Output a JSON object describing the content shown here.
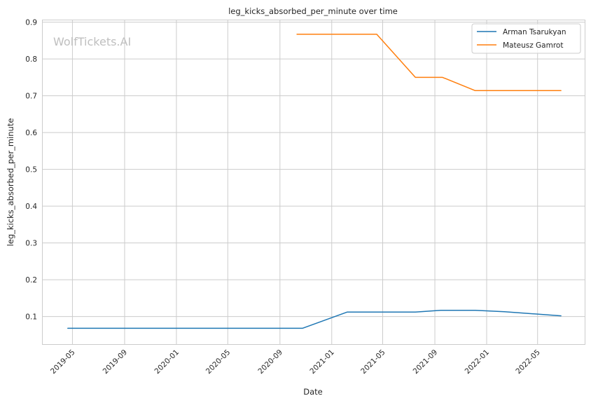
{
  "chart_data": {
    "type": "line",
    "title": "leg_kicks_absorbed_per_minute over time",
    "xlabel": "Date",
    "ylabel": "leg_kicks_absorbed_per_minute",
    "watermark": "WolfTickets.AI",
    "grid": true,
    "legend_position": "top-right",
    "xlim": [
      "2019-02-20",
      "2022-08-20"
    ],
    "ylim": [
      0.025,
      0.905
    ],
    "x_ticks": [
      {
        "date": "2019-05-01",
        "label": "2019-05"
      },
      {
        "date": "2019-09-01",
        "label": "2019-09"
      },
      {
        "date": "2020-01-01",
        "label": "2020-01"
      },
      {
        "date": "2020-05-01",
        "label": "2020-05"
      },
      {
        "date": "2020-09-01",
        "label": "2020-09"
      },
      {
        "date": "2021-01-01",
        "label": "2021-01"
      },
      {
        "date": "2021-05-01",
        "label": "2021-05"
      },
      {
        "date": "2021-09-01",
        "label": "2021-09"
      },
      {
        "date": "2022-01-01",
        "label": "2022-01"
      },
      {
        "date": "2022-05-01",
        "label": "2022-05"
      }
    ],
    "y_ticks": [
      {
        "value": 0.1,
        "label": "0.1"
      },
      {
        "value": 0.2,
        "label": "0.2"
      },
      {
        "value": 0.3,
        "label": "0.3"
      },
      {
        "value": 0.4,
        "label": "0.4"
      },
      {
        "value": 0.5,
        "label": "0.5"
      },
      {
        "value": 0.6,
        "label": "0.6"
      },
      {
        "value": 0.7,
        "label": "0.7"
      },
      {
        "value": 0.8,
        "label": "0.8"
      },
      {
        "value": 0.9,
        "label": "0.9"
      }
    ],
    "series": [
      {
        "name": "Arman Tsarukyan",
        "color": "#1f77b4",
        "points": [
          {
            "x": "2019-04-20",
            "y": 0.068
          },
          {
            "x": "2020-10-24",
            "y": 0.068
          },
          {
            "x": "2021-02-06",
            "y": 0.112
          },
          {
            "x": "2021-07-17",
            "y": 0.112
          },
          {
            "x": "2021-09-15",
            "y": 0.117
          },
          {
            "x": "2021-12-05",
            "y": 0.117
          },
          {
            "x": "2022-02-12",
            "y": 0.113
          },
          {
            "x": "2022-06-25",
            "y": 0.102
          }
        ]
      },
      {
        "name": "Mateusz Gamrot",
        "color": "#ff7f0e",
        "points": [
          {
            "x": "2020-10-11",
            "y": 0.867
          },
          {
            "x": "2021-04-17",
            "y": 0.867
          },
          {
            "x": "2021-07-17",
            "y": 0.75
          },
          {
            "x": "2021-09-19",
            "y": 0.75
          },
          {
            "x": "2021-12-05",
            "y": 0.714
          },
          {
            "x": "2022-06-25",
            "y": 0.714
          }
        ]
      }
    ]
  }
}
